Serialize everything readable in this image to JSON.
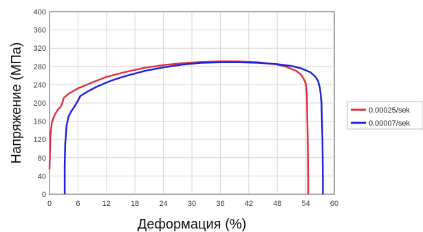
{
  "chart_data": {
    "type": "line",
    "xlabel": "Деформация (%)",
    "ylabel": "Напряжение (МПа)",
    "xlim": [
      0,
      60
    ],
    "ylim": [
      0,
      400
    ],
    "x_ticks": [
      0,
      6,
      12,
      18,
      24,
      30,
      36,
      42,
      48,
      54,
      60
    ],
    "y_ticks": [
      0,
      40,
      80,
      120,
      160,
      200,
      240,
      280,
      320,
      360,
      400
    ],
    "grid": true,
    "legend_position": "right",
    "series": [
      {
        "name": "0.00025/sek",
        "color": "#e03040",
        "x": [
          0.0,
          0.2,
          0.5,
          1.0,
          1.6,
          2.2,
          2.6,
          3.0,
          4.0,
          6.0,
          9.0,
          12.0,
          16.0,
          20.0,
          24.0,
          28.0,
          32.0,
          36.0,
          40.0,
          44.0,
          48.0,
          50.0,
          52.0,
          53.0,
          53.6,
          54.0,
          54.2,
          54.4,
          54.5,
          54.5
        ],
        "y": [
          55,
          130,
          158,
          172,
          183,
          190,
          197,
          211,
          220,
          232,
          245,
          257,
          268,
          277,
          283,
          287,
          290,
          291,
          291,
          289,
          284,
          279,
          270,
          262,
          252,
          242,
          220,
          120,
          30,
          0
        ]
      },
      {
        "name": "0.00007/sek",
        "color": "#2020e0",
        "x": [
          3.2,
          3.2,
          3.3,
          3.6,
          4.0,
          4.6,
          5.3,
          6.0,
          6.5,
          8.0,
          10.0,
          13.0,
          16.0,
          20.0,
          24.0,
          28.0,
          32.0,
          36.0,
          40.0,
          44.0,
          48.0,
          51.0,
          53.0,
          55.0,
          56.0,
          56.6,
          57.0,
          57.3,
          57.5,
          57.6,
          57.6
        ],
        "y": [
          0,
          60,
          110,
          150,
          170,
          182,
          193,
          205,
          215,
          225,
          236,
          249,
          259,
          270,
          278,
          284,
          288,
          289,
          289,
          288,
          285,
          281,
          276,
          267,
          258,
          248,
          232,
          200,
          120,
          40,
          0
        ]
      }
    ]
  }
}
